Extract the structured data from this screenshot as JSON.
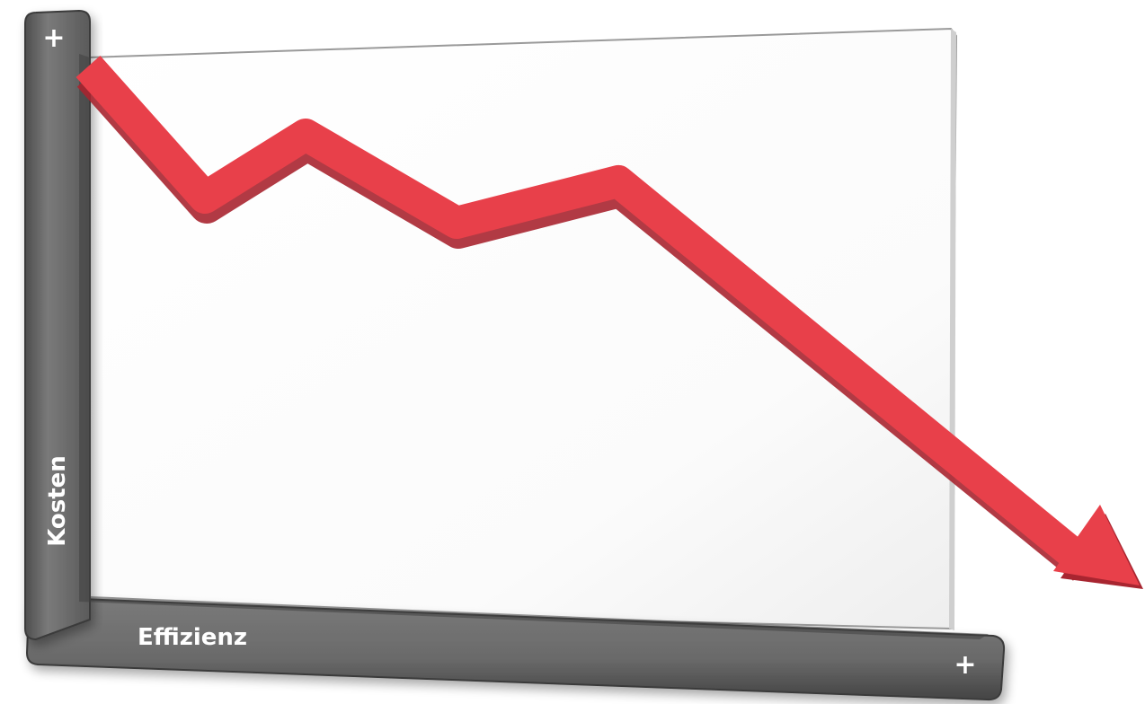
{
  "y_axis": {
    "label": "Kosten",
    "plus_symbol": "+"
  },
  "x_axis": {
    "label": "Effizienz",
    "plus_symbol": "+"
  },
  "trend": {
    "direction": "down",
    "color": "#e8404a"
  },
  "colors": {
    "axis_frame": "#6b6b6b",
    "board": "#ffffff",
    "arrow": "#e8404a"
  }
}
